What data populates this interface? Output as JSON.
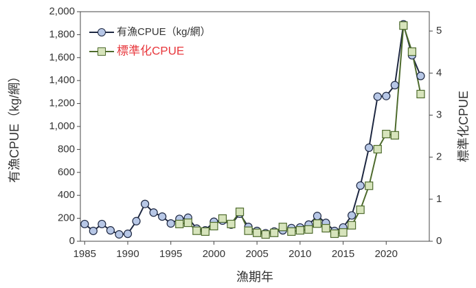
{
  "chart_data": {
    "type": "line",
    "xlabel": "漁期年",
    "ylabel": "有漁CPUE（kg/網）",
    "y2label": "標準化CPUE",
    "xlim": [
      1984.5,
      2025
    ],
    "xticks": [
      1985,
      1990,
      1995,
      2000,
      2005,
      2010,
      2015,
      2020
    ],
    "ylim": [
      0,
      2000
    ],
    "yticks": [
      0,
      200,
      400,
      600,
      800,
      {
        "value": 1000,
        "label": "1,000"
      },
      {
        "value": 1200,
        "label": "1,200"
      },
      {
        "value": 1400,
        "label": "1,400"
      },
      {
        "value": 1600,
        "label": "1,600"
      },
      {
        "value": 1800,
        "label": "1,800"
      },
      {
        "value": 2000,
        "label": "2,000"
      }
    ],
    "y2lim": [
      0,
      5.46
    ],
    "y2ticks": [
      0,
      1,
      2,
      3,
      4,
      5
    ],
    "legend": "upper left",
    "series": [
      {
        "name": "有漁CPUE（kg/網）",
        "color": "#1c2640",
        "marker": "circle",
        "marker_color": "#b7c7e6",
        "label_color": "#333333",
        "x": [
          1985,
          1986,
          1987,
          1988,
          1989,
          1990,
          1991,
          1992,
          1993,
          1994,
          1995,
          1996,
          1997,
          1998,
          1999,
          2000,
          2001,
          2002,
          2003,
          2004,
          2005,
          2006,
          2007,
          2008,
          2009,
          2010,
          2011,
          2012,
          2013,
          2014,
          2015,
          2016,
          2017,
          2018,
          2019,
          2020,
          2021,
          2022,
          2023,
          2024
        ],
        "values": [
          150,
          90,
          150,
          95,
          60,
          65,
          175,
          325,
          250,
          215,
          155,
          195,
          205,
          110,
          95,
          170,
          180,
          145,
          240,
          125,
          90,
          70,
          85,
          95,
          115,
          120,
          145,
          220,
          160,
          90,
          120,
          225,
          485,
          815,
          1260,
          1265,
          1360,
          1890,
          1620,
          1440
        ]
      },
      {
        "name": "標準化CPUE",
        "color": "#4d6a2c",
        "marker": "square",
        "marker_color": "#d7e4bc",
        "label_color": "#e8383d",
        "axis": "y2",
        "x": [
          1996,
          1997,
          1998,
          1999,
          2000,
          2001,
          2002,
          2003,
          2004,
          2005,
          2006,
          2007,
          2008,
          2009,
          2010,
          2011,
          2012,
          2013,
          2014,
          2015,
          2016,
          2017,
          2018,
          2019,
          2020,
          2021,
          2022,
          2023,
          2024
        ],
        "values": [
          0.41,
          0.44,
          0.25,
          0.23,
          0.36,
          0.54,
          0.41,
          0.7,
          0.25,
          0.2,
          0.16,
          0.2,
          0.34,
          0.23,
          0.26,
          0.28,
          0.42,
          0.31,
          0.18,
          0.21,
          0.38,
          0.75,
          1.32,
          2.19,
          2.55,
          2.52,
          5.13,
          4.51,
          3.5
        ]
      }
    ]
  }
}
